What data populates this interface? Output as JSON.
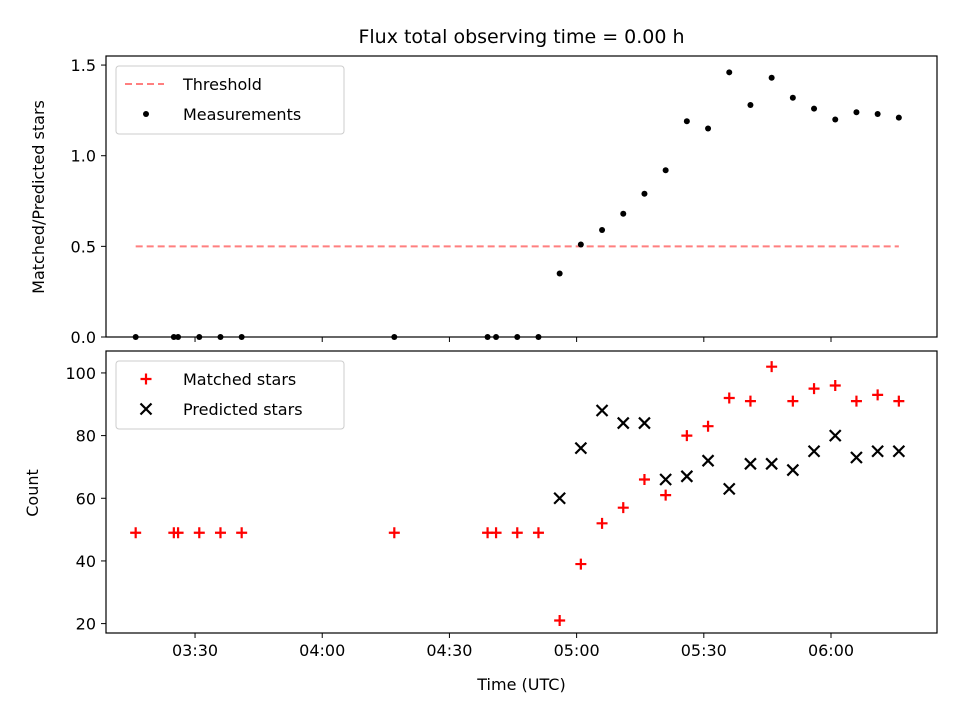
{
  "title": "Flux total observing time = 0.00 h",
  "colors": {
    "threshold": "#ff7f7f",
    "measurement": "#000000",
    "matched": "#ff0000",
    "predicted": "#000000"
  },
  "chart_data": [
    {
      "type": "scatter",
      "panel": "top",
      "ylabel": "Matched/Predicted stars",
      "ylim": [
        0,
        1.55
      ],
      "yticks": [
        {
          "value": 0.0,
          "label": "0.0"
        },
        {
          "value": 0.5,
          "label": "0.5"
        },
        {
          "value": 1.0,
          "label": "1.0"
        },
        {
          "value": 1.5,
          "label": "1.5"
        }
      ],
      "xlim": [
        "03:09",
        "06:25"
      ],
      "legend": "top-left",
      "series": [
        {
          "name": "Threshold",
          "style": "dashed-line",
          "x": [
            "03:16",
            "06:16"
          ],
          "y": [
            0.5,
            0.5
          ]
        },
        {
          "name": "Measurements",
          "style": "dot",
          "x": [
            "03:16",
            "03:25",
            "03:26",
            "03:31",
            "03:36",
            "03:41",
            "04:17",
            "04:39",
            "04:41",
            "04:46",
            "04:51",
            "04:56",
            "05:01",
            "05:06",
            "05:11",
            "05:16",
            "05:21",
            "05:26",
            "05:31",
            "05:36",
            "05:41",
            "05:46",
            "05:51",
            "05:56",
            "06:01",
            "06:06",
            "06:11",
            "06:16"
          ],
          "y": [
            0,
            0,
            0,
            0,
            0,
            0,
            0,
            0,
            0,
            0,
            0,
            0.35,
            0.51,
            0.59,
            0.68,
            0.79,
            0.92,
            1.19,
            1.15,
            1.46,
            1.28,
            1.43,
            1.32,
            1.26,
            1.2,
            1.24,
            1.23,
            1.21
          ]
        }
      ]
    },
    {
      "type": "scatter",
      "panel": "bottom",
      "xlabel": "Time (UTC)",
      "ylabel": "Count",
      "ylim": [
        17,
        107
      ],
      "yticks": [
        {
          "value": 20,
          "label": "20"
        },
        {
          "value": 40,
          "label": "40"
        },
        {
          "value": 60,
          "label": "60"
        },
        {
          "value": 80,
          "label": "80"
        },
        {
          "value": 100,
          "label": "100"
        }
      ],
      "xlim": [
        "03:09",
        "06:25"
      ],
      "xticks": [
        {
          "value": "03:30",
          "label": "03:30"
        },
        {
          "value": "04:00",
          "label": "04:00"
        },
        {
          "value": "04:30",
          "label": "04:30"
        },
        {
          "value": "05:00",
          "label": "05:00"
        },
        {
          "value": "05:30",
          "label": "05:30"
        },
        {
          "value": "06:00",
          "label": "06:00"
        }
      ],
      "legend": "top-left",
      "series": [
        {
          "name": "Matched stars",
          "marker": "+",
          "x": [
            "03:16",
            "03:25",
            "03:26",
            "03:31",
            "03:36",
            "03:41",
            "04:17",
            "04:39",
            "04:41",
            "04:46",
            "04:51",
            "04:56",
            "05:01",
            "05:06",
            "05:11",
            "05:16",
            "05:21",
            "05:26",
            "05:31",
            "05:36",
            "05:41",
            "05:46",
            "05:51",
            "05:56",
            "06:01",
            "06:06",
            "06:11",
            "06:16"
          ],
          "y": [
            49,
            49,
            49,
            49,
            49,
            49,
            49,
            49,
            49,
            49,
            49,
            21,
            39,
            52,
            57,
            66,
            61,
            80,
            83,
            92,
            91,
            102,
            91,
            95,
            96,
            91,
            93,
            91
          ]
        },
        {
          "name": "Predicted stars",
          "marker": "x",
          "x": [
            "04:56",
            "05:01",
            "05:06",
            "05:11",
            "05:16",
            "05:21",
            "05:26",
            "05:31",
            "05:36",
            "05:41",
            "05:46",
            "05:51",
            "05:56",
            "06:01",
            "06:06",
            "06:11",
            "06:16"
          ],
          "y": [
            60,
            76,
            88,
            84,
            84,
            66,
            67,
            72,
            63,
            71,
            71,
            69,
            75,
            80,
            73,
            75,
            75
          ]
        }
      ]
    }
  ]
}
